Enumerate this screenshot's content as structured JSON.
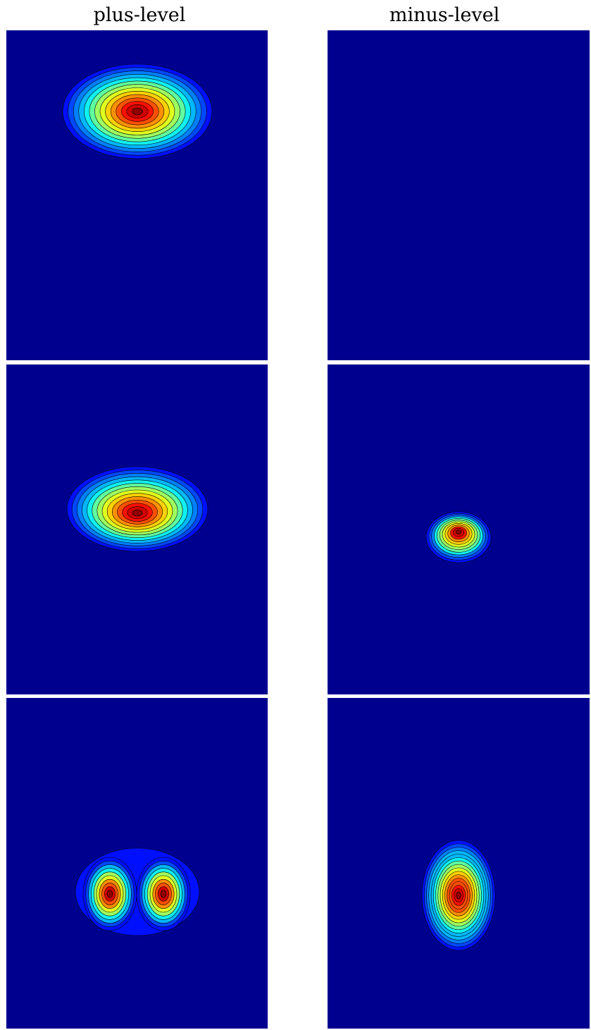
{
  "columns": {
    "left": "plus-level",
    "right": "minus-level"
  }
}
